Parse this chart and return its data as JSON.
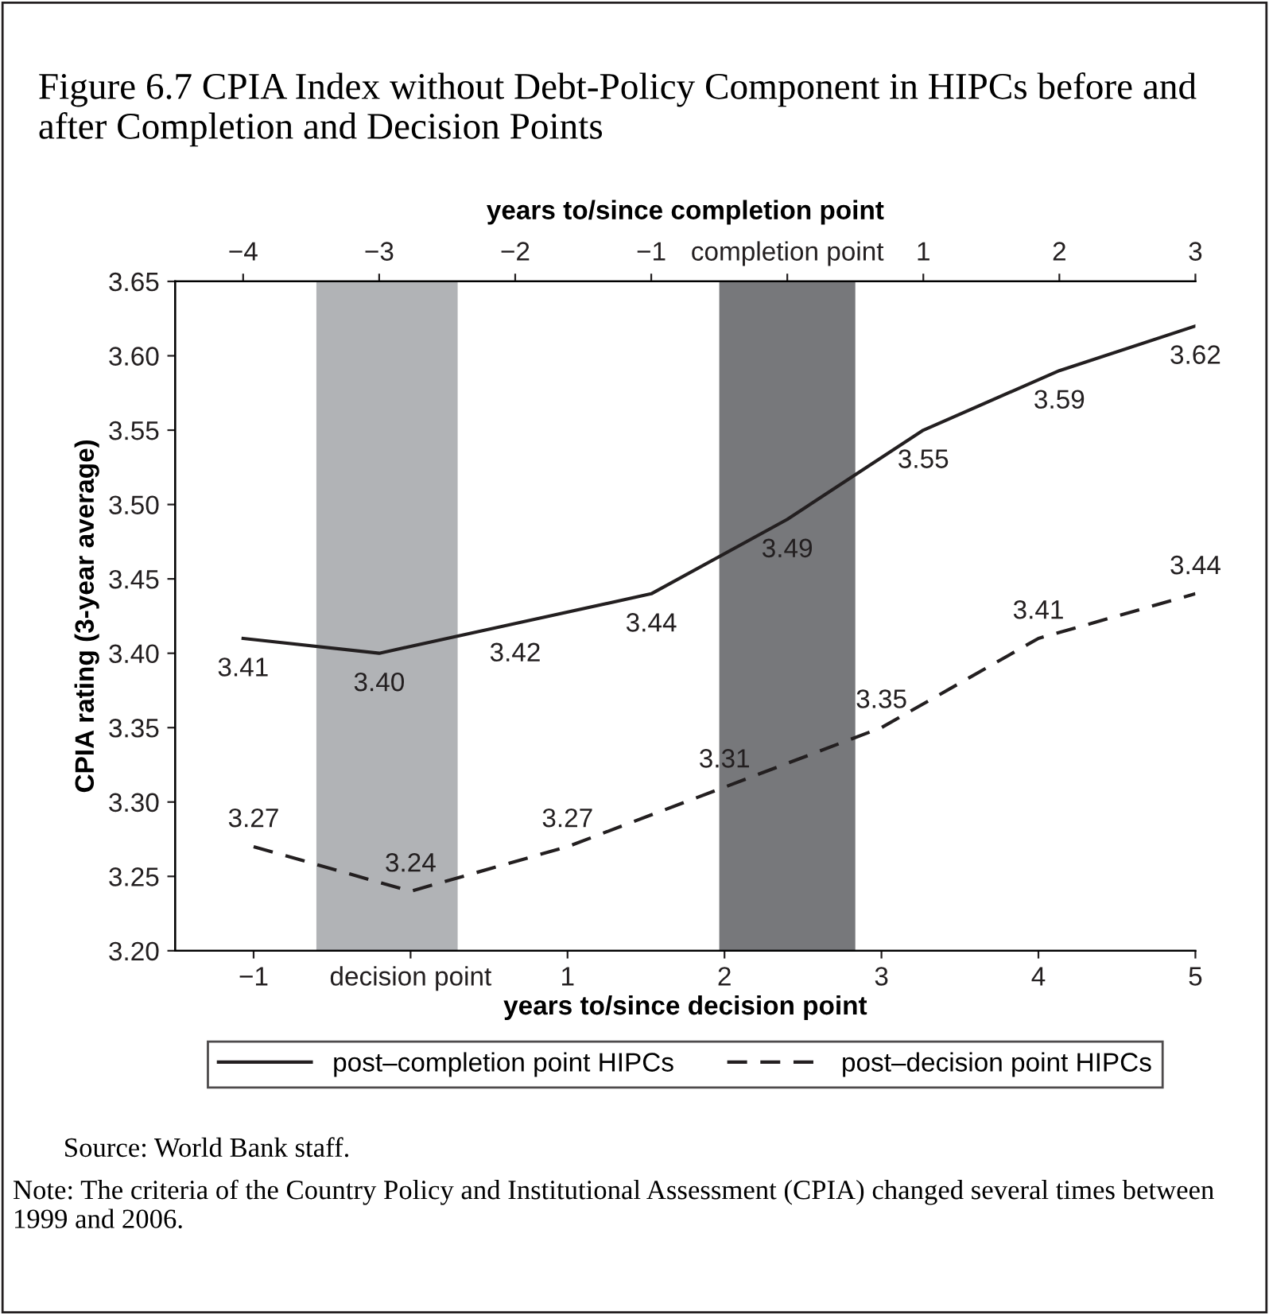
{
  "chart_data": {
    "type": "line",
    "title": "Figure 6.7 CPIA Index without Debt-Policy Component in HIPCs before and after Completion and Decision Points",
    "xlabel": "years to/since decision point",
    "x2label": "years to/since completion point",
    "ylabel": "CPIA rating (3-year average)",
    "xlim": [
      -1.5,
      5
    ],
    "xticks": [
      -1,
      {
        "value": 0,
        "label": "decision point"
      },
      1,
      2,
      3,
      4,
      5
    ],
    "x2lim": [
      -4.5,
      3
    ],
    "x2ticks": [
      -4,
      -3,
      -2,
      -1,
      {
        "value": 0,
        "label": "completion point"
      },
      1,
      2,
      3
    ],
    "ylim": [
      3.2,
      3.65
    ],
    "yticks": [
      {
        "value": 3.2,
        "label": "3.20"
      },
      {
        "value": 3.25,
        "label": "3.25"
      },
      {
        "value": 3.3,
        "label": "3.30"
      },
      {
        "value": 3.35,
        "label": "3.35"
      },
      {
        "value": 3.4,
        "label": "3.40"
      },
      {
        "value": 3.45,
        "label": "3.45"
      },
      {
        "value": 3.5,
        "label": "3.50"
      },
      {
        "value": 3.55,
        "label": "3.55"
      },
      {
        "value": 3.6,
        "label": "3.60"
      },
      {
        "value": 3.65,
        "label": "3.65"
      }
    ],
    "series": [
      {
        "name": "post–completion point HIPCs",
        "color": "#231f20",
        "axis": "x2",
        "line_style": "solid",
        "x": [
          -4,
          -3,
          -2,
          -1,
          0,
          1,
          2,
          3
        ],
        "values": [
          3.41,
          3.4,
          3.42,
          3.44,
          3.49,
          3.55,
          3.59,
          3.62
        ],
        "value_labels": [
          "3.41",
          "3.40",
          "3.42",
          "3.44",
          "3.49",
          "3.55",
          "3.59",
          "3.62"
        ]
      },
      {
        "name": "post–decision point HIPCs",
        "color": "#231f20",
        "line_style": "dashed",
        "x": [
          -1,
          0,
          1,
          2,
          3,
          4,
          5
        ],
        "values": [
          3.27,
          3.24,
          3.27,
          3.31,
          3.35,
          3.41,
          3.44
        ],
        "value_labels": [
          "3.27",
          "3.24",
          "3.27",
          "3.31",
          "3.35",
          "3.41",
          "3.44"
        ]
      }
    ],
    "bands": [
      {
        "axis": "x",
        "from": -0.6,
        "to": 0.3,
        "color": "#b1b3b6"
      },
      {
        "axis": "x2",
        "from": -0.5,
        "to": 0.5,
        "color": "#77787b"
      }
    ],
    "legend": "bottom",
    "grid": false,
    "marker": "none",
    "annotations": [
      "Source: World Bank staff.",
      "Note: The criteria of the Country Policy and Institutional Assessment (CPIA) changed several times between 1999 and 2006."
    ]
  }
}
